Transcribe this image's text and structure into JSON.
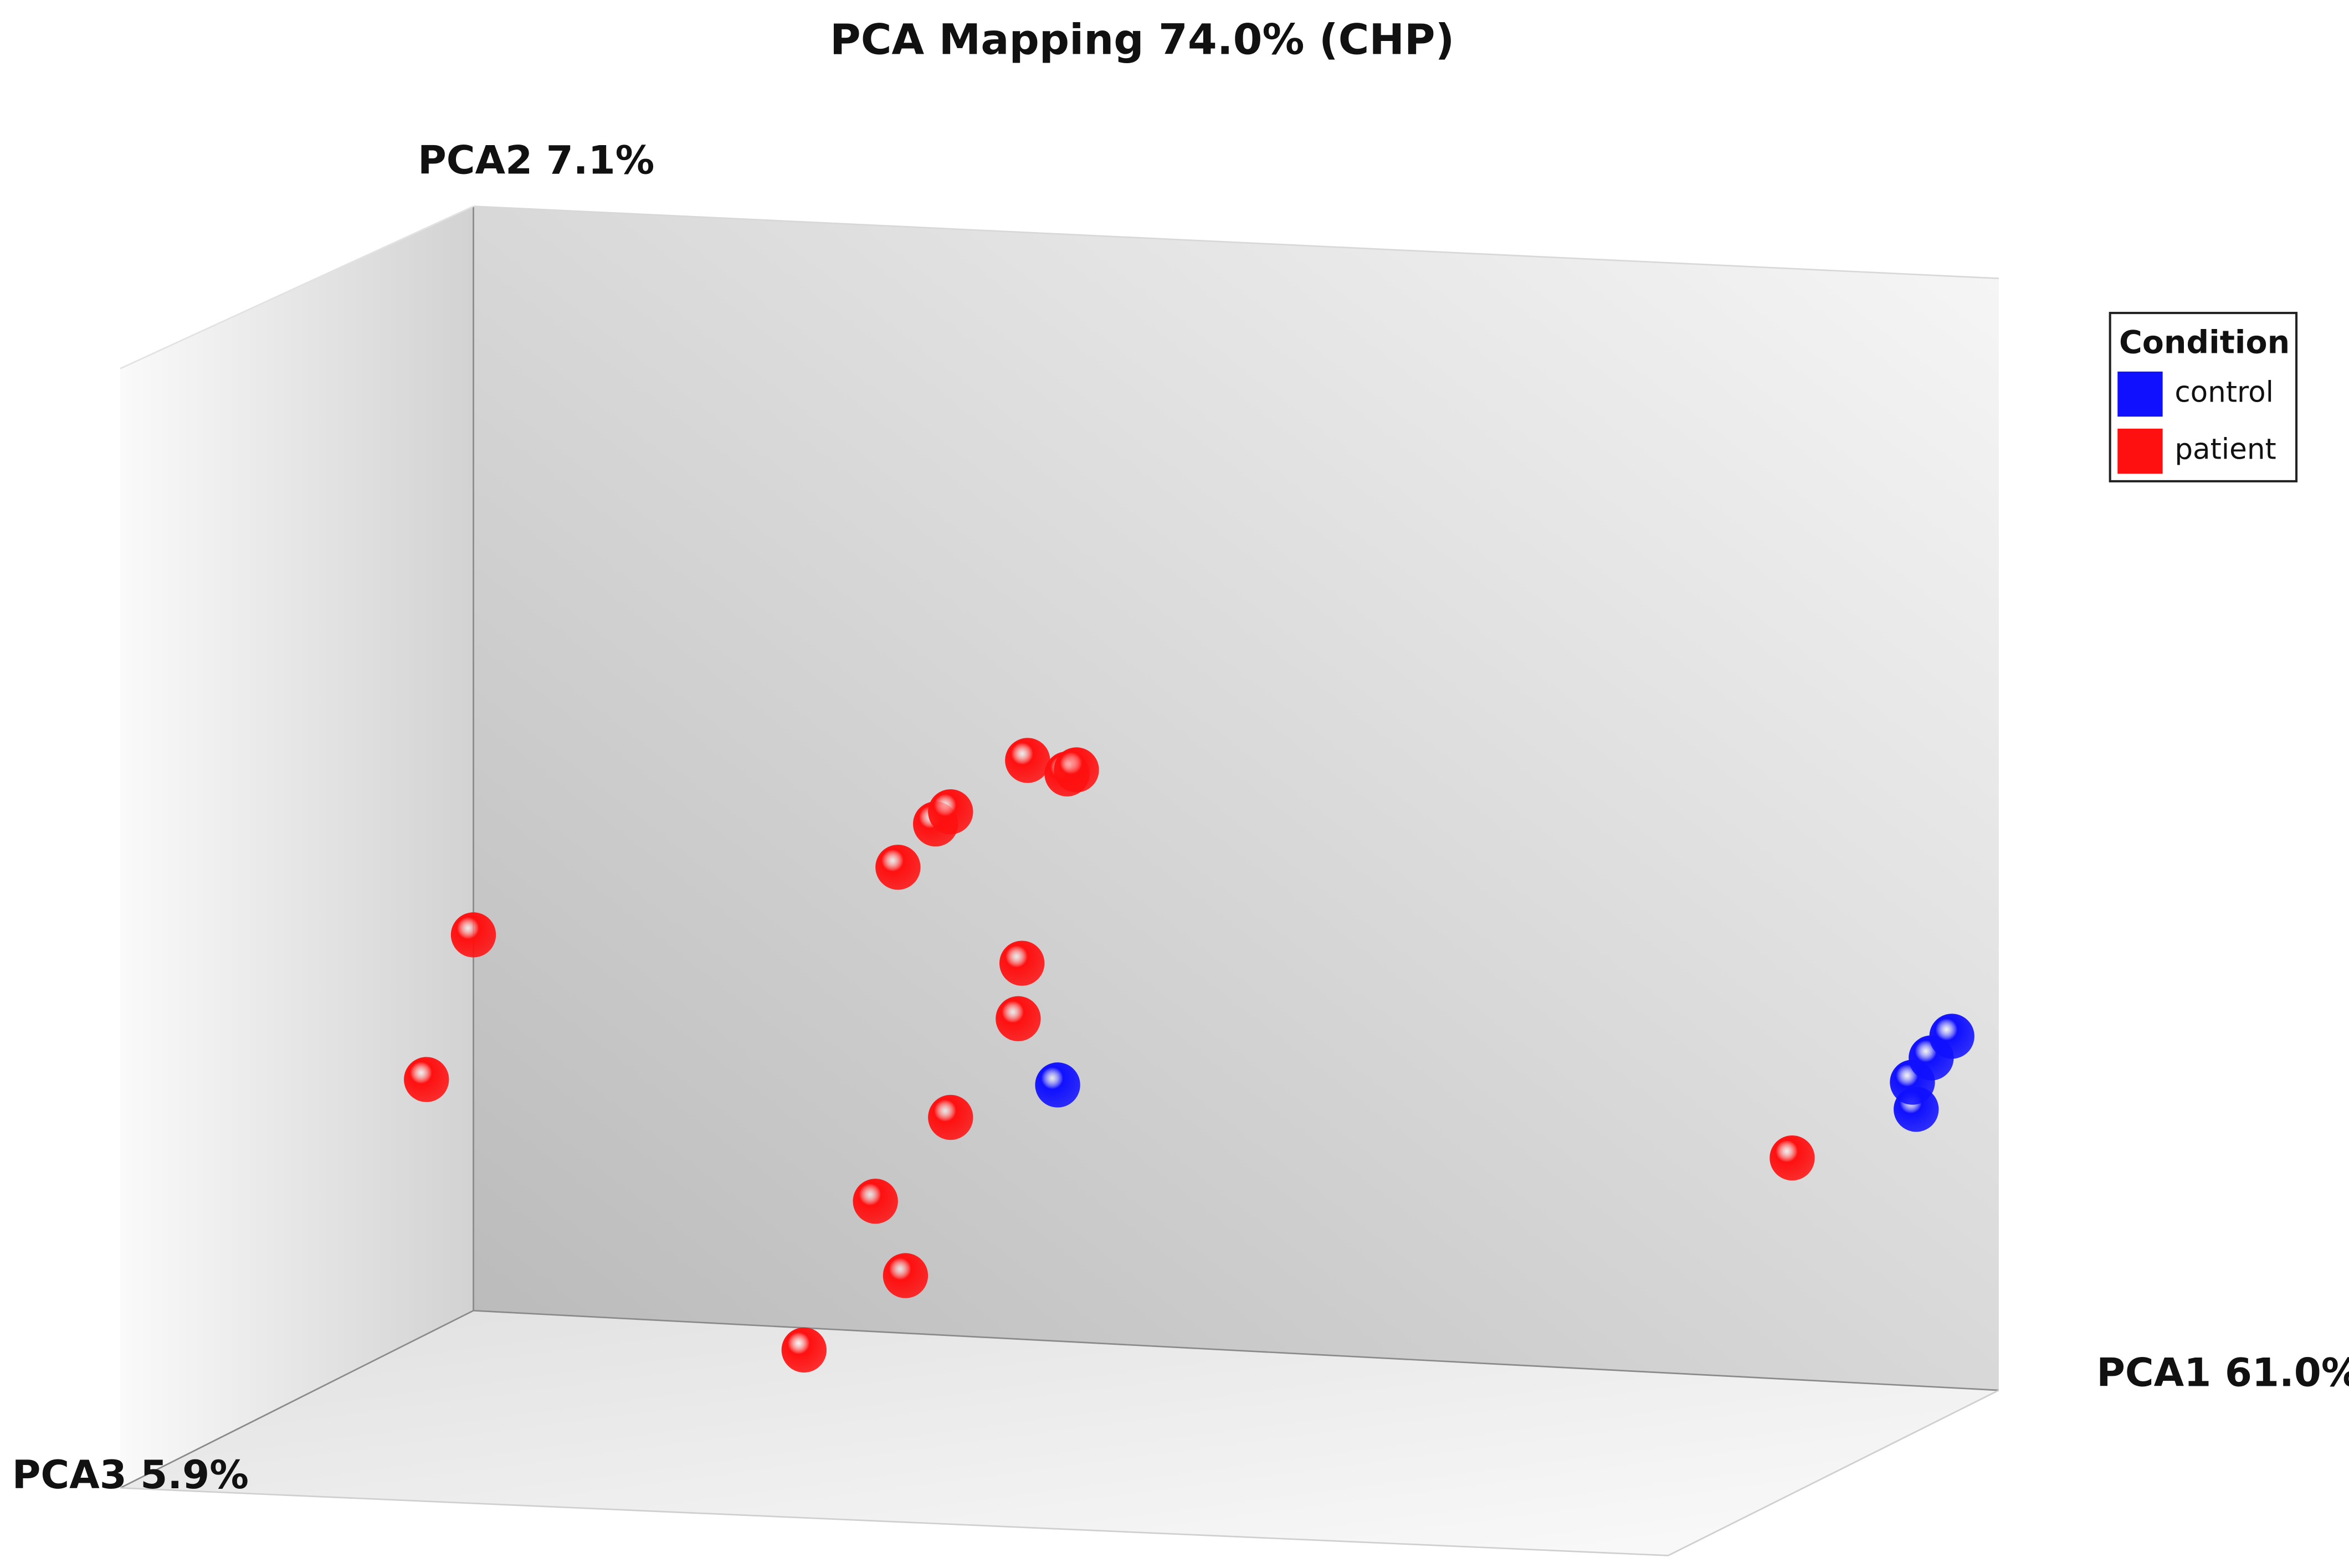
{
  "chart_data": {
    "type": "scatter3d",
    "title": "PCA Mapping 74.0% (CHP)",
    "x_label": "PCA1 61.0%",
    "y_label": "PCA2 7.1%",
    "z_label": "PCA3 5.9%",
    "legend_title": "Condition",
    "legend": "top-right",
    "xlim": [
      0,
      100
    ],
    "ylim": [
      0,
      100
    ],
    "series": [
      {
        "name": "control",
        "color": "#1010ff",
        "x": [
          49.9,
          95.6,
          95.4,
          96.4,
          97.5
        ],
        "values": [
          34.8,
          33.0,
          35.0,
          36.8,
          38.4
        ]
      },
      {
        "name": "patient",
        "color": "#ff1010",
        "x": [
          18.8,
          16.3,
          41.4,
          43.4,
          44.2,
          48.3,
          50.4,
          50.9,
          48.0,
          47.8,
          44.2,
          40.2,
          41.8,
          36.4,
          89.0
        ],
        "values": [
          45.9,
          35.2,
          50.9,
          54.1,
          55.0,
          58.8,
          57.8,
          58.1,
          43.8,
          39.7,
          32.4,
          26.2,
          20.7,
          15.2,
          29.4
        ]
      }
    ]
  }
}
